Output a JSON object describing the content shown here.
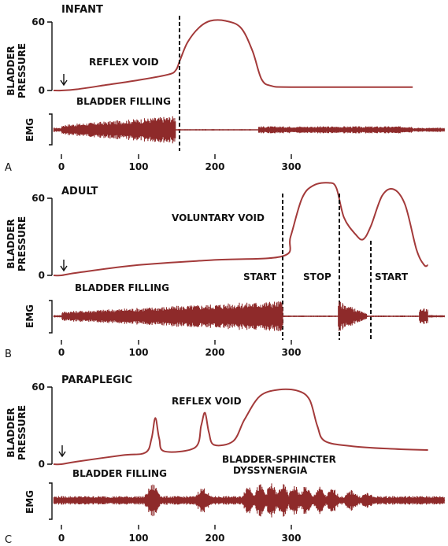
{
  "common": {
    "ylabel_line1": "BLADDER",
    "ylabel_line2": "PRESSURE",
    "emg_label": "EMG",
    "y_ticks": [
      "60",
      "0"
    ],
    "x_ticks": [
      "0",
      "100",
      "200",
      "300"
    ],
    "curve_color": "#a33a3a",
    "emg_color": "#8e2a2a"
  },
  "panels": [
    {
      "letter": "A",
      "title": "INFANT",
      "annotations": [
        "REFLEX VOID",
        "BLADDER FILLING"
      ],
      "pressure_curve": [
        [
          0,
          0
        ],
        [
          20,
          1
        ],
        [
          60,
          5
        ],
        [
          100,
          9
        ],
        [
          140,
          14
        ],
        [
          150,
          18
        ],
        [
          155,
          26
        ],
        [
          165,
          42
        ],
        [
          180,
          55
        ],
        [
          195,
          61
        ],
        [
          215,
          61
        ],
        [
          235,
          55
        ],
        [
          250,
          35
        ],
        [
          262,
          10
        ],
        [
          275,
          4
        ],
        [
          300,
          3
        ],
        [
          400,
          3
        ],
        [
          460,
          3
        ]
      ],
      "vertical_markers": [
        150
      ],
      "emg": {
        "baseline_amplitude": 0.15,
        "segments": [
          {
            "from": 0,
            "to": 150,
            "start_amp": 0.35,
            "end_amp": 1.0
          },
          {
            "from": 150,
            "to": 258,
            "start_amp": 0.05,
            "end_amp": 0.05
          },
          {
            "from": 258,
            "to": 460,
            "start_amp": 0.25,
            "end_amp": 0.25
          }
        ]
      }
    },
    {
      "letter": "B",
      "title": "ADULT",
      "annotations": [
        "VOLUNTARY VOID",
        "BLADDER FILLING",
        "START",
        "STOP",
        "START"
      ],
      "pressure_curve": [
        [
          0,
          0
        ],
        [
          20,
          2
        ],
        [
          100,
          8
        ],
        [
          200,
          12
        ],
        [
          290,
          15
        ],
        [
          300,
          30
        ],
        [
          315,
          60
        ],
        [
          330,
          70
        ],
        [
          350,
          72
        ],
        [
          360,
          68
        ],
        [
          370,
          45
        ],
        [
          385,
          32
        ],
        [
          395,
          28
        ],
        [
          405,
          38
        ],
        [
          420,
          62
        ],
        [
          435,
          67
        ],
        [
          450,
          55
        ],
        [
          465,
          20
        ],
        [
          475,
          8
        ],
        [
          480,
          8
        ]
      ],
      "vertical_markers": [
        290,
        362,
        400
      ],
      "emg": {
        "baseline_amplitude": 0.08,
        "segments": [
          {
            "from": 0,
            "to": 290,
            "start_amp": 0.3,
            "end_amp": 1.0
          },
          {
            "from": 290,
            "to": 362,
            "start_amp": 0.05,
            "end_amp": 0.05
          },
          {
            "from": 362,
            "to": 400,
            "start_amp": 1.0,
            "end_amp": 0.15
          },
          {
            "from": 400,
            "to": 480,
            "start_amp": 0.05,
            "end_amp": 0.05
          },
          {
            "from": 468,
            "to": 480,
            "start_amp": 0.5,
            "end_amp": 0.5
          }
        ]
      }
    },
    {
      "letter": "C",
      "title": "PARAPLEGIC",
      "annotations": [
        "REFLEX VOID",
        "BLADDER FILLING",
        "BLADDER-SPHINCTER",
        "DYSSYNERGIA"
      ],
      "pressure_curve": [
        [
          0,
          0
        ],
        [
          20,
          2
        ],
        [
          80,
          7
        ],
        [
          110,
          9
        ],
        [
          118,
          20
        ],
        [
          123,
          36
        ],
        [
          128,
          20
        ],
        [
          135,
          10
        ],
        [
          175,
          13
        ],
        [
          183,
          30
        ],
        [
          188,
          40
        ],
        [
          193,
          25
        ],
        [
          200,
          15
        ],
        [
          225,
          18
        ],
        [
          240,
          35
        ],
        [
          260,
          53
        ],
        [
          285,
          58
        ],
        [
          310,
          57
        ],
        [
          325,
          50
        ],
        [
          335,
          30
        ],
        [
          345,
          18
        ],
        [
          380,
          14
        ],
        [
          430,
          12
        ],
        [
          480,
          11
        ]
      ],
      "vertical_markers": [],
      "emg": {
        "baseline_amplitude": 0.25,
        "bursts": [
          [
            120,
            10,
            0.95
          ],
          [
            185,
            10,
            0.75
          ],
          [
            245,
            8,
            0.9
          ],
          [
            260,
            8,
            0.95
          ],
          [
            275,
            8,
            1.0
          ],
          [
            290,
            8,
            0.95
          ],
          [
            305,
            8,
            0.9
          ],
          [
            320,
            8,
            0.85
          ],
          [
            338,
            8,
            0.8
          ],
          [
            355,
            9,
            0.7
          ],
          [
            380,
            10,
            0.6
          ],
          [
            400,
            10,
            0.45
          ]
        ]
      }
    }
  ]
}
